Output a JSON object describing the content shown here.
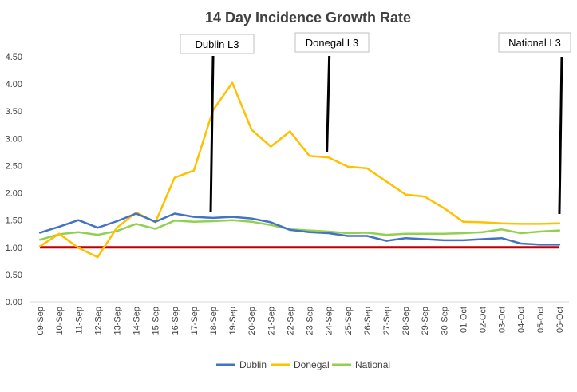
{
  "chart_data": {
    "type": "line",
    "title": "14 Day Incidence Growth Rate",
    "xlabel": "",
    "ylabel": "",
    "ylim": [
      0,
      4.5
    ],
    "yticks": [
      "0.00",
      "0.50",
      "1.00",
      "1.50",
      "2.00",
      "2.50",
      "3.00",
      "3.50",
      "4.00",
      "4.50"
    ],
    "grid": false,
    "legend_position": "bottom",
    "categories": [
      "09-Sep",
      "10-Sep",
      "11-Sep",
      "12-Sep",
      "13-Sep",
      "14-Sep",
      "15-Sep",
      "16-Sep",
      "17-Sep",
      "18-Sep",
      "19-Sep",
      "20-Sep",
      "21-Sep",
      "22-Sep",
      "23-Sep",
      "24-Sep",
      "25-Sep",
      "26-Sep",
      "27-Sep",
      "28-Sep",
      "29-Sep",
      "30-Sep",
      "01-Oct",
      "02-Oct",
      "03-Oct",
      "04-Oct",
      "05-Oct",
      "06-Oct"
    ],
    "series": [
      {
        "name": "Dublin",
        "color": "#4472C4",
        "values": [
          1.27,
          1.38,
          1.5,
          1.36,
          1.48,
          1.62,
          1.47,
          1.62,
          1.56,
          1.54,
          1.56,
          1.53,
          1.46,
          1.32,
          1.28,
          1.26,
          1.21,
          1.21,
          1.12,
          1.17,
          1.15,
          1.13,
          1.13,
          1.15,
          1.17,
          1.07,
          1.05,
          1.05
        ]
      },
      {
        "name": "Donegal",
        "color": "#FFC000",
        "values": [
          1.02,
          1.25,
          0.99,
          0.82,
          1.36,
          1.64,
          1.46,
          2.28,
          2.41,
          3.52,
          4.02,
          3.16,
          2.85,
          3.13,
          2.68,
          2.65,
          2.48,
          2.45,
          2.21,
          1.97,
          1.93,
          1.72,
          1.47,
          1.46,
          1.44,
          1.43,
          1.43,
          1.44
        ]
      },
      {
        "name": "National",
        "color": "#92D050",
        "values": [
          1.14,
          1.24,
          1.28,
          1.23,
          1.3,
          1.43,
          1.34,
          1.49,
          1.47,
          1.48,
          1.5,
          1.47,
          1.41,
          1.33,
          1.31,
          1.29,
          1.26,
          1.27,
          1.23,
          1.25,
          1.25,
          1.25,
          1.26,
          1.28,
          1.33,
          1.26,
          1.29,
          1.31
        ]
      }
    ],
    "reference_line": {
      "value": 1.0,
      "color": "#C00000"
    },
    "annotations": [
      {
        "label": "Dublin L3",
        "category": "18-Sep"
      },
      {
        "label": "Donegal L3",
        "category": "24-Sep"
      },
      {
        "label": "National L3",
        "category": "06-Oct"
      }
    ]
  }
}
